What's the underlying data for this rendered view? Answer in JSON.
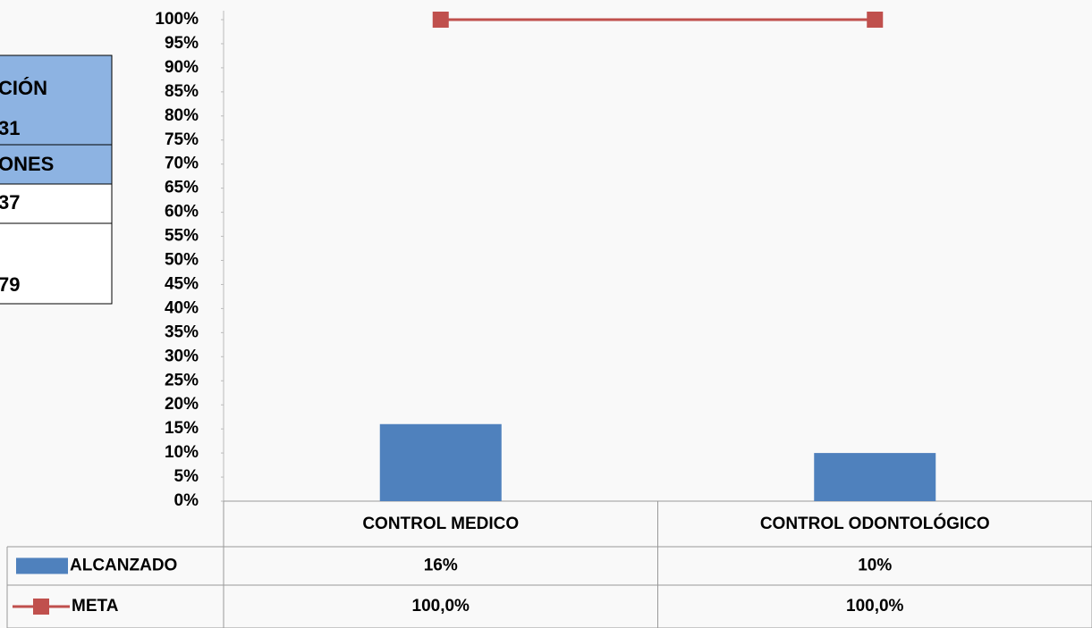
{
  "chart_data": {
    "type": "bar",
    "categories": [
      "CONTROL MEDICO",
      "CONTROL ODONTOLÓGICO"
    ],
    "series": [
      {
        "name": "ALCANZADO",
        "type": "bar",
        "color": "#4f81bd",
        "values": [
          16,
          10
        ],
        "value_labels": [
          "16%",
          "10%"
        ]
      },
      {
        "name": "META",
        "type": "line",
        "color": "#c0504d",
        "values": [
          100,
          100
        ],
        "value_labels": [
          "100,0%",
          "100,0%"
        ]
      }
    ],
    "ylim": [
      0,
      100
    ],
    "yticks": [
      {
        "value": 0,
        "label": "0%"
      },
      {
        "value": 5,
        "label": "5%"
      },
      {
        "value": 10,
        "label": "10%"
      },
      {
        "value": 15,
        "label": "15%"
      },
      {
        "value": 20,
        "label": "20%"
      },
      {
        "value": 25,
        "label": "25%"
      },
      {
        "value": 30,
        "label": "30%"
      },
      {
        "value": 35,
        "label": "35%"
      },
      {
        "value": 40,
        "label": "40%"
      },
      {
        "value": 45,
        "label": "45%"
      },
      {
        "value": 50,
        "label": "50%"
      },
      {
        "value": 55,
        "label": "55%"
      },
      {
        "value": 60,
        "label": "60%"
      },
      {
        "value": 65,
        "label": "65%"
      },
      {
        "value": 70,
        "label": "70%"
      },
      {
        "value": 75,
        "label": "75%"
      },
      {
        "value": 80,
        "label": "80%"
      },
      {
        "value": 85,
        "label": "85%"
      },
      {
        "value": 90,
        "label": "90%"
      },
      {
        "value": 95,
        "label": "95%"
      },
      {
        "value": 100,
        "label": "100%"
      }
    ],
    "data_table": true
  },
  "side_table": {
    "rows": [
      "CIÓN",
      "31",
      "ONES",
      "37",
      "79"
    ]
  }
}
